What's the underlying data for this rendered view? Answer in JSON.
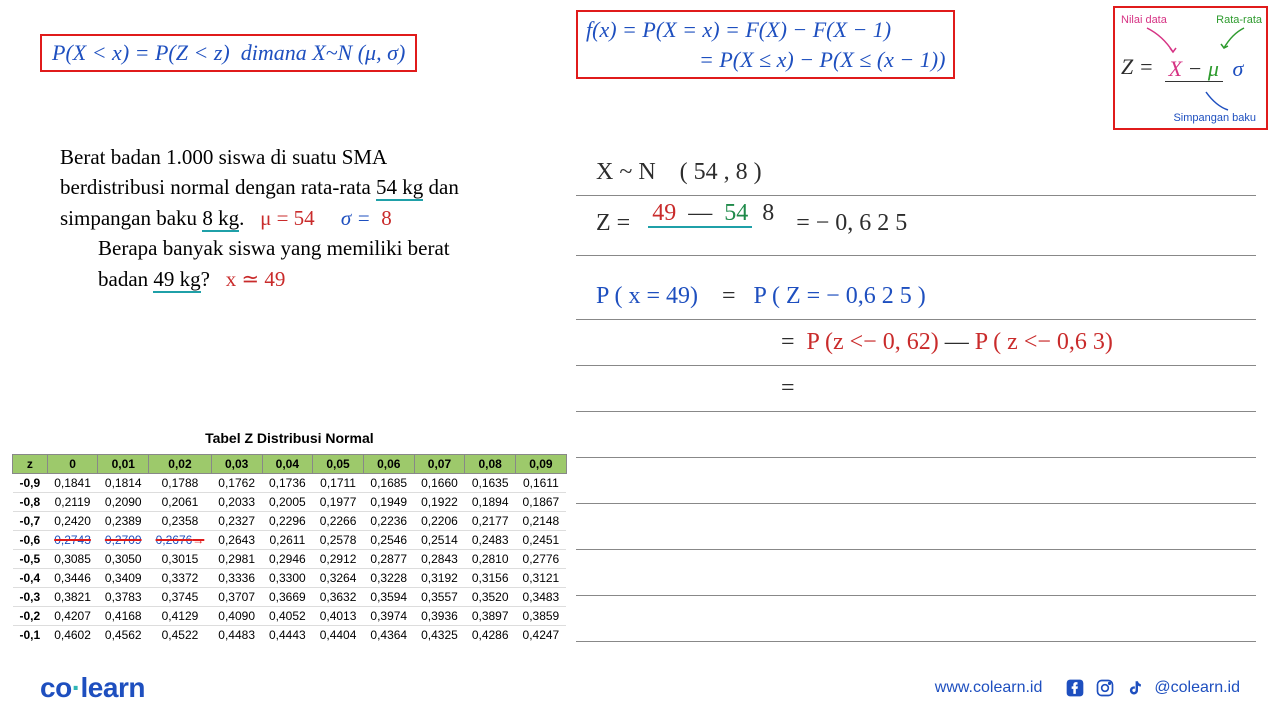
{
  "formula1": "P(X < x) = P(Z < z)  dimana X~N (μ, σ)",
  "formula2_l1": "f(x) = P(X = x) = F(X) − F(X − 1)",
  "formula2_l2": "= P(X ≤ x) − P(X ≤ (x − 1))",
  "zbox": {
    "nilai": "Nilai data",
    "rata": "Rata-rata",
    "simp": "Simpangan baku",
    "z": "Z =",
    "num_x": "X",
    "num_minus": "−",
    "num_mu": "μ",
    "den": "σ"
  },
  "problem": {
    "l1": "Berat badan 1.000 siswa di suatu SMA",
    "l2a": "berdistribusi normal dengan rata-rata ",
    "l2b": "54 kg",
    "l2c": " dan",
    "l3a": "simpangan baku ",
    "l3b": "8 kg",
    "l3c": ".",
    "mu": "μ  =   54",
    "sigma_lbl": "σ  =",
    "sigma_v": "8",
    "l4": "Berapa banyak siswa yang memiliki berat",
    "l5a": "badan ",
    "l5b": "49 kg",
    "l5c": "?",
    "x": "x  ≃  49"
  },
  "work": {
    "w1a": "X ~ N",
    "w1b": "( 54 , 8 )",
    "w2a": "Z  =",
    "w2_num1": "49",
    "w2_minus": "—",
    "w2_num2": "54",
    "w2_den": "8",
    "w2_eq": "=   − 0, 6 2 5",
    "w3a": "P ( x = 49)",
    "w3eq": "=",
    "w3b": "P ( Z = − 0,6 2 5 )",
    "w4eq": "=",
    "w4a": "P (z <− 0, 62)",
    "w4minus": "—",
    "w4b": "P ( z  <− 0,6 3)",
    "w5eq": "="
  },
  "ztable": {
    "title": "Tabel Z Distribusi Normal",
    "headers": [
      "z",
      "0",
      "0,01",
      "0,02",
      "0,03",
      "0,04",
      "0,05",
      "0,06",
      "0,07",
      "0,08",
      "0,09"
    ],
    "rows": [
      [
        "-0,9",
        "0,1841",
        "0,1814",
        "0,1788",
        "0,1762",
        "0,1736",
        "0,1711",
        "0,1685",
        "0,1660",
        "0,1635",
        "0,1611"
      ],
      [
        "-0,8",
        "0,2119",
        "0,2090",
        "0,2061",
        "0,2033",
        "0,2005",
        "0,1977",
        "0,1949",
        "0,1922",
        "0,1894",
        "0,1867"
      ],
      [
        "-0,7",
        "0,2420",
        "0,2389",
        "0,2358",
        "0,2327",
        "0,2296",
        "0,2266",
        "0,2236",
        "0,2206",
        "0,2177",
        "0,2148"
      ],
      [
        "-0,6",
        "0,2743",
        "0,2709",
        "0,2676",
        "0,2643",
        "0,2611",
        "0,2578",
        "0,2546",
        "0,2514",
        "0,2483",
        "0,2451"
      ],
      [
        "-0,5",
        "0,3085",
        "0,3050",
        "0,3015",
        "0,2981",
        "0,2946",
        "0,2912",
        "0,2877",
        "0,2843",
        "0,2810",
        "0,2776"
      ],
      [
        "-0,4",
        "0,3446",
        "0,3409",
        "0,3372",
        "0,3336",
        "0,3300",
        "0,3264",
        "0,3228",
        "0,3192",
        "0,3156",
        "0,3121"
      ],
      [
        "-0,3",
        "0,3821",
        "0,3783",
        "0,3745",
        "0,3707",
        "0,3669",
        "0,3632",
        "0,3594",
        "0,3557",
        "0,3520",
        "0,3483"
      ],
      [
        "-0,2",
        "0,4207",
        "0,4168",
        "0,4129",
        "0,4090",
        "0,4052",
        "0,4013",
        "0,3974",
        "0,3936",
        "0,3897",
        "0,3859"
      ],
      [
        "-0,1",
        "0,4602",
        "0,4562",
        "0,4522",
        "0,4483",
        "0,4443",
        "0,4404",
        "0,4364",
        "0,4325",
        "0,4286",
        "0,4247"
      ]
    ],
    "highlight_row": 3,
    "highlight_cols": [
      1,
      2,
      3
    ]
  },
  "footer": {
    "logo1": "co",
    "logo2": "learn",
    "url": "www.colearn.id",
    "handle": "@colearn.id"
  }
}
